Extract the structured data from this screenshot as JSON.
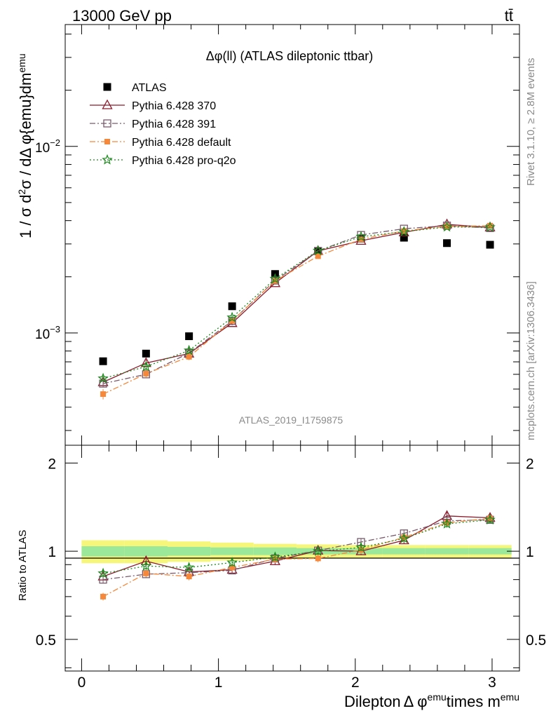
{
  "header": {
    "energy_label": "13000 GeV pp",
    "process_label": "tt̄"
  },
  "side": {
    "rivet_label": "Rivet 3.1.10, ≥ 2.8M events",
    "mcplots_label": "mcplots.cern.ch [arXiv:1306.3436]"
  },
  "chart_data": [
    {
      "type": "scatter",
      "title": "Δφ(ll) (ATLAS dileptonic ttbar)",
      "watermark": "ATLAS_2019_I1759875",
      "ylabel_text": "1 / σ d²σ / dΔ φ{emu}dm^emu",
      "yscale": "log",
      "ylim": [
        0.00025,
        0.045
      ],
      "xlim": [
        -0.12,
        3.2
      ],
      "yticks": [
        {
          "value": 0.001,
          "base": "10",
          "exp": "−3"
        },
        {
          "value": 0.01,
          "base": "10",
          "exp": "−2"
        }
      ],
      "legend_position": "top-left",
      "x": [
        0.157,
        0.471,
        0.785,
        1.1,
        1.414,
        1.728,
        2.042,
        2.356,
        2.67,
        2.985
      ],
      "series": [
        {
          "name": "ATLAS",
          "marker": "square-filled",
          "color": "#000000",
          "dash": "",
          "values": [
            0.000705,
            0.000775,
            0.00096,
            0.00139,
            0.00207,
            0.00275,
            0.00321,
            0.00324,
            0.00303,
            0.00297
          ],
          "errors": [
            2e-05,
            2e-05,
            2e-05,
            3e-05,
            3e-05,
            3e-05,
            3e-05,
            3e-05,
            3e-05,
            3e-05
          ]
        },
        {
          "name": "Pythia 6.428 370",
          "marker": "triangle-open",
          "color": "#8b1a2b",
          "dash": "",
          "values": [
            0.000545,
            0.00069,
            0.000775,
            0.00113,
            0.00185,
            0.00275,
            0.00312,
            0.00346,
            0.00382,
            0.00368
          ],
          "errors": [
            2e-05,
            3e-05,
            3e-05,
            3e-05,
            3e-05,
            3e-05,
            3e-05,
            3e-05,
            3e-05,
            3e-05
          ]
        },
        {
          "name": "Pythia 6.428 391",
          "marker": "square-open",
          "color": "#7a5a6a",
          "dash": "8,3,2,3",
          "values": [
            0.000535,
            0.0006,
            0.00078,
            0.00116,
            0.00191,
            0.00275,
            0.00335,
            0.00362,
            0.00376,
            0.00365
          ],
          "errors": [
            2e-05,
            2e-05,
            3e-05,
            3e-05,
            3e-05,
            3e-05,
            3e-05,
            3e-05,
            3e-05,
            3e-05
          ]
        },
        {
          "name": "Pythia 6.428 default",
          "marker": "square-filled-small",
          "color": "#f5883a",
          "dash": "8,3,2,3",
          "values": [
            0.00047,
            0.000605,
            0.000745,
            0.00116,
            0.0019,
            0.00258,
            0.00318,
            0.00352,
            0.00372,
            0.00376
          ],
          "errors": [
            3e-05,
            3e-05,
            3e-05,
            3e-05,
            3e-05,
            3e-05,
            3e-05,
            3e-05,
            3e-05,
            3e-05
          ]
        },
        {
          "name": "Pythia 6.428 pro-q2o",
          "marker": "star",
          "color": "#1a8a1a",
          "dash": "2,3",
          "values": [
            0.00057,
            0.00066,
            0.000805,
            0.00121,
            0.00195,
            0.00276,
            0.00328,
            0.00349,
            0.0037,
            0.00369
          ],
          "errors": [
            2e-05,
            3e-05,
            3e-05,
            3e-05,
            3e-05,
            3e-05,
            3e-05,
            3e-05,
            3e-05,
            3e-05
          ]
        }
      ]
    },
    {
      "type": "line",
      "ylabel": "Ratio to ATLAS",
      "xlabel_parts": {
        "a": "Dilepton",
        "b": "Δ φ",
        "c": "emu",
        "d": "times m",
        "e": "emu"
      },
      "ylim": [
        0.39,
        2.3
      ],
      "xlim": [
        -0.12,
        3.2
      ],
      "yticks": [
        "0.5",
        "1",
        "2"
      ],
      "ytick_values": [
        0.5,
        1,
        2
      ],
      "xticks": [
        "0",
        "1",
        "2",
        "3"
      ],
      "xtick_values": [
        0,
        1,
        2,
        3
      ],
      "band_edges": [
        0,
        0.314,
        0.628,
        0.942,
        1.257,
        1.571,
        1.885,
        2.199,
        2.513,
        2.827,
        3.142
      ],
      "band_outer": [
        0.09,
        0.09,
        0.08,
        0.07,
        0.06,
        0.055,
        0.05,
        0.05,
        0.05,
        0.05
      ],
      "band_inner": [
        0.04,
        0.04,
        0.035,
        0.03,
        0.03,
        0.025,
        0.025,
        0.025,
        0.025,
        0.025
      ],
      "series": [
        {
          "name": "Pythia 6.428 370",
          "values": [
            0.82,
            0.925,
            0.85,
            0.865,
            0.925,
            1.005,
            1.0,
            1.09,
            1.32,
            1.3
          ]
        },
        {
          "name": "Pythia 6.428 391",
          "values": [
            0.8,
            0.835,
            0.845,
            0.86,
            0.945,
            1.005,
            1.075,
            1.15,
            1.27,
            1.28
          ]
        },
        {
          "name": "Pythia 6.428 default",
          "values": [
            0.7,
            0.84,
            0.82,
            0.88,
            0.94,
            0.945,
            1.01,
            1.115,
            1.25,
            1.295
          ]
        },
        {
          "name": "Pythia 6.428 pro-q2o",
          "values": [
            0.84,
            0.89,
            0.88,
            0.915,
            0.955,
            1.0,
            1.03,
            1.105,
            1.24,
            1.28
          ]
        }
      ]
    }
  ]
}
